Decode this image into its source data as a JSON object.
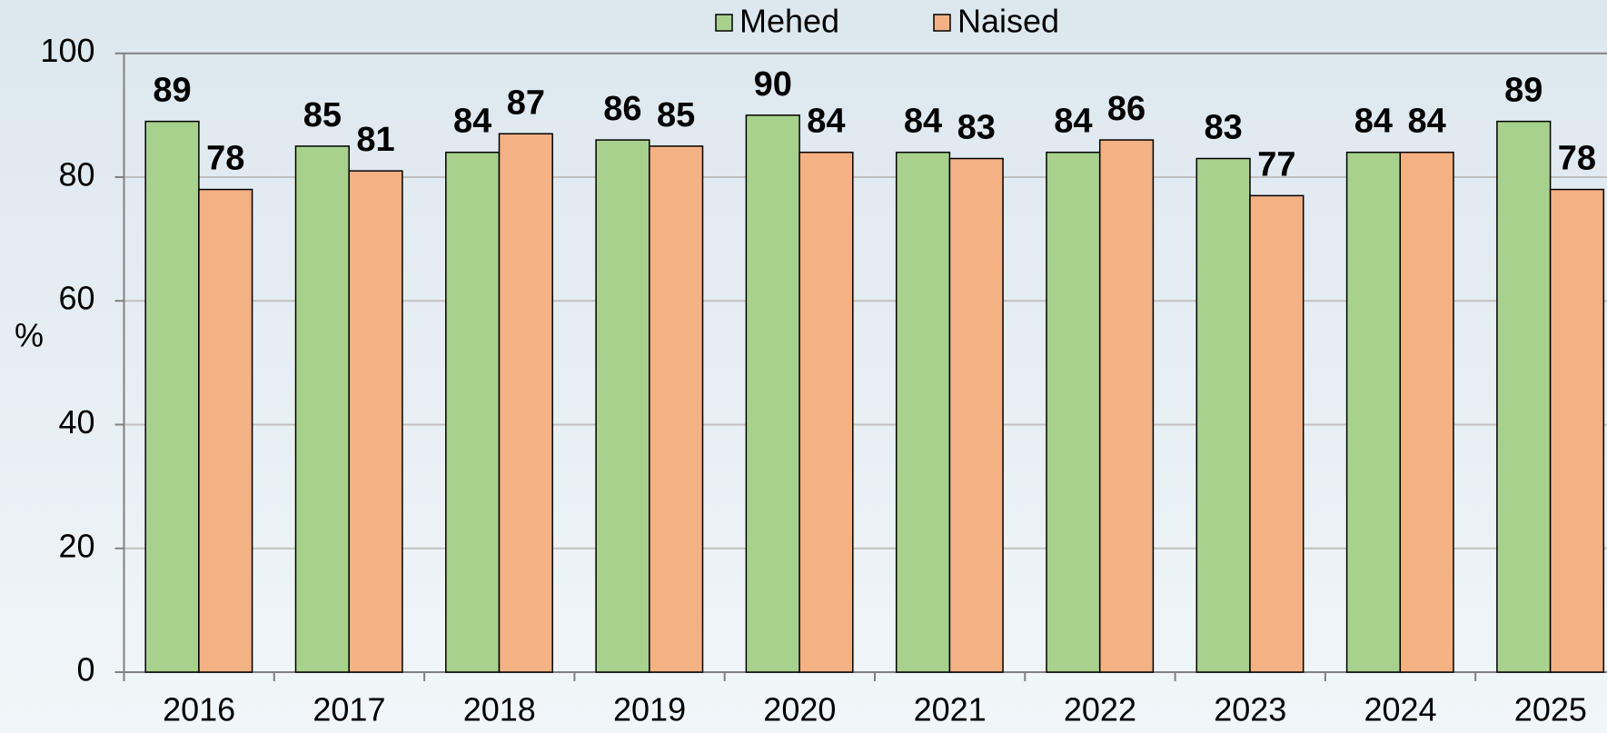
{
  "chart_data": {
    "type": "bar",
    "y_label": "%",
    "categories": [
      "2016",
      "2017",
      "2018",
      "2019",
      "2020",
      "2021",
      "2022",
      "2023",
      "2024",
      "2025"
    ],
    "series": [
      {
        "name": "Mehed",
        "color": "#a9d18e",
        "values": [
          89,
          85,
          84,
          86,
          90,
          84,
          84,
          83,
          84,
          89
        ]
      },
      {
        "name": "Naised",
        "color": "#f4b183",
        "values": [
          78,
          81,
          87,
          85,
          84,
          83,
          86,
          77,
          84,
          78
        ]
      }
    ],
    "ylim": [
      0,
      100
    ],
    "yticks": [
      0,
      20,
      40,
      60,
      80,
      100
    ],
    "grid": true,
    "legend": "top"
  }
}
